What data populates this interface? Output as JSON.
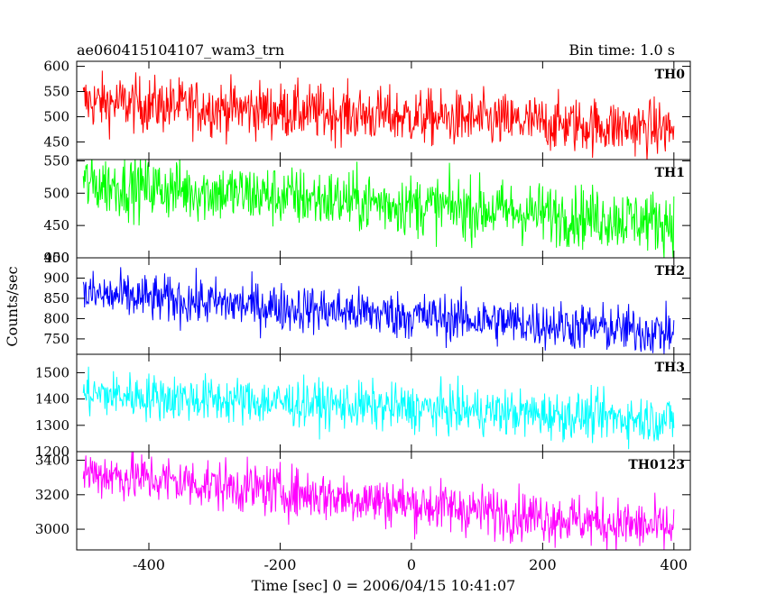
{
  "header": {
    "title": "ae060415104107_wam3_trn",
    "bin_time": "Bin time: 1.0 s"
  },
  "chart_data": {
    "type": "line",
    "ylabel": "Counts/sec",
    "xlabel": "Time [sec] 0 = 2006/04/15 10:41:07",
    "xlim": [
      -510,
      425
    ],
    "x_ticks": [
      "-400",
      "-200",
      "0",
      "200",
      "400"
    ],
    "x_tick_values": [
      -400,
      -200,
      0,
      200,
      400
    ],
    "x_range": [
      -500,
      400
    ],
    "panels": [
      {
        "name": "TH0",
        "color": "#ff0000",
        "ylim": [
          415,
          610
        ],
        "yticks": [
          450,
          500,
          550,
          600
        ],
        "start": 530,
        "end": 475,
        "noise": 28
      },
      {
        "name": "TH1",
        "color": "#00ff00",
        "ylim": [
          400,
          552
        ],
        "yticks": [
          400,
          450,
          500,
          550
        ],
        "start": 515,
        "end": 455,
        "noise": 24
      },
      {
        "name": "TH2",
        "color": "#0000ff",
        "ylim": [
          712,
          950
        ],
        "yticks": [
          750,
          800,
          850,
          900,
          950
        ],
        "start": 860,
        "end": 765,
        "noise": 30
      },
      {
        "name": "TH3",
        "color": "#00ffff",
        "ylim": [
          1200,
          1570
        ],
        "yticks": [
          1200,
          1300,
          1400,
          1500
        ],
        "start": 1420,
        "end": 1320,
        "noise": 45
      },
      {
        "name": "TH0123",
        "color": "#ff00ff",
        "ylim": [
          2880,
          3450
        ],
        "yticks": [
          3000,
          3200,
          3400
        ],
        "start": 3330,
        "end": 3000,
        "noise": 75
      }
    ]
  }
}
